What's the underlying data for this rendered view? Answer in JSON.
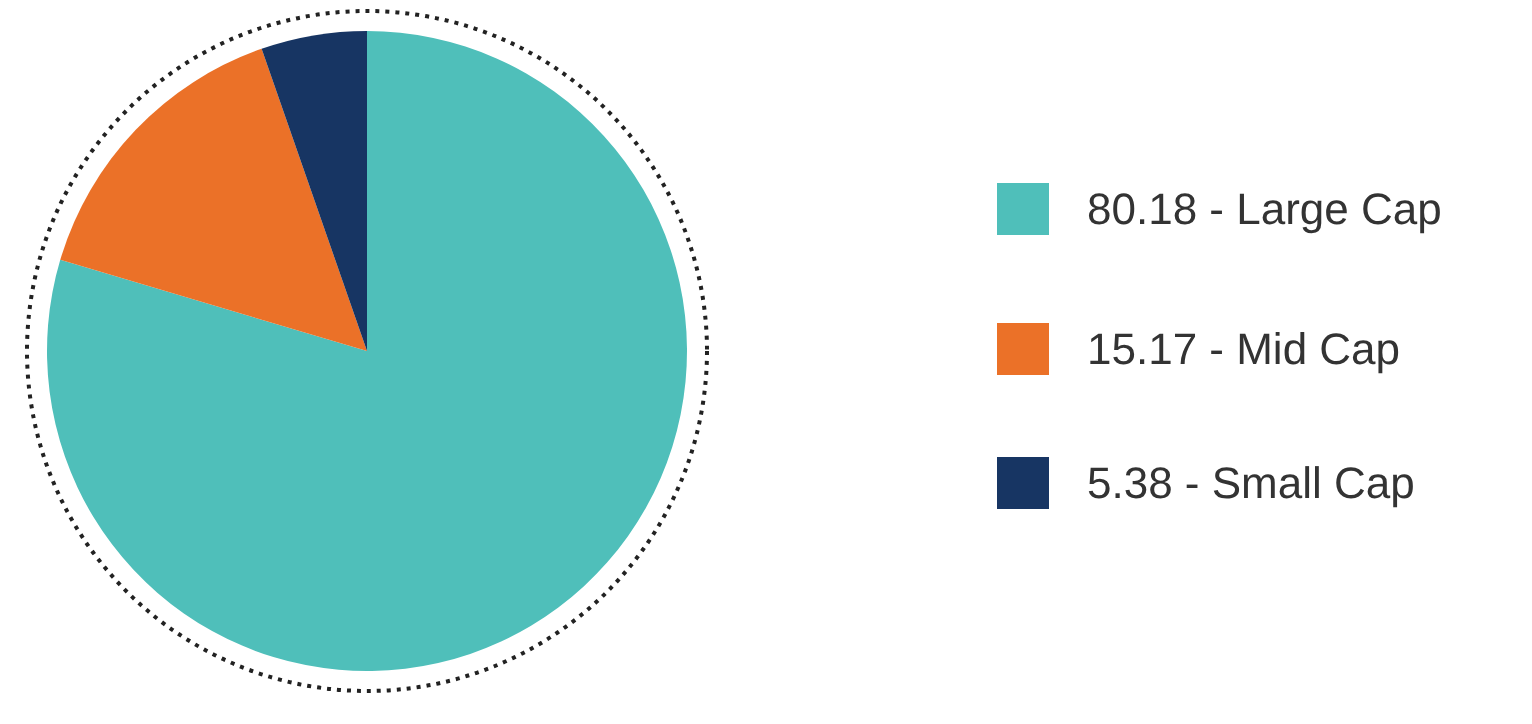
{
  "chart_data": {
    "type": "pie",
    "categories": [
      "80.18 - Large Cap",
      "15.17 - Mid Cap",
      "5.38 - Small Cap"
    ],
    "values": [
      80.18,
      15.17,
      5.38
    ],
    "colors": [
      "#4fbfba",
      "#eb7128",
      "#173563"
    ],
    "legend": "right"
  }
}
